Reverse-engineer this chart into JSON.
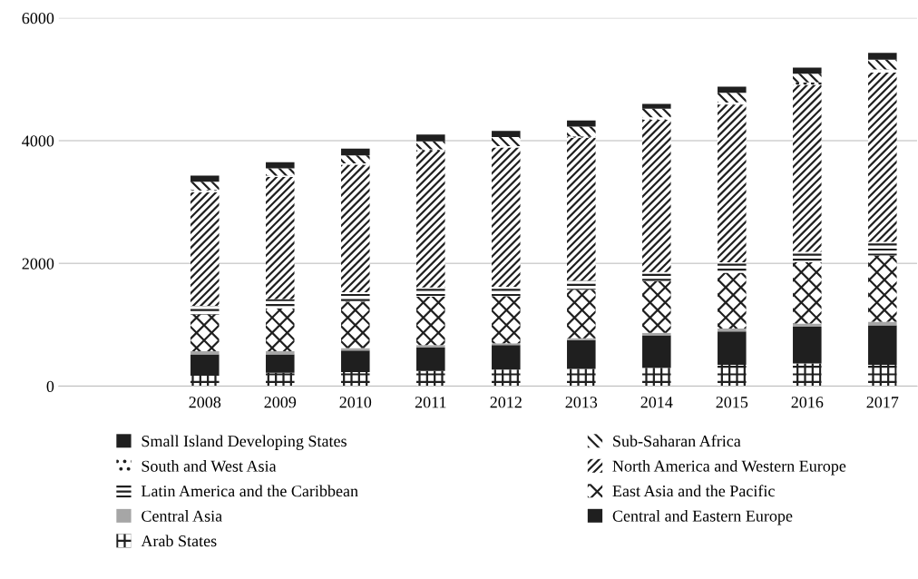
{
  "chart_data": {
    "type": "bar",
    "stacked": true,
    "categories": [
      "2008",
      "2009",
      "2010",
      "2011",
      "2012",
      "2013",
      "2014",
      "2015",
      "2016",
      "2017"
    ],
    "series": [
      {
        "name": "Arab States",
        "color": "#1f1f1f",
        "values": [
          170,
          220,
          230,
          250,
          270,
          280,
          300,
          350,
          370,
          350
        ]
      },
      {
        "name": "Central and Eastern Europe",
        "color": "#1f1f1f",
        "values": [
          350,
          300,
          350,
          380,
          400,
          470,
          530,
          540,
          600,
          640
        ]
      },
      {
        "name": "Central Asia",
        "color": "#a6a6a6",
        "values": [
          50,
          50,
          40,
          40,
          30,
          30,
          40,
          50,
          50,
          60
        ]
      },
      {
        "name": "East Asia and the Pacific",
        "color": "#1f1f1f",
        "values": [
          600,
          700,
          760,
          790,
          770,
          790,
          840,
          910,
          1000,
          1080
        ]
      },
      {
        "name": "Latin America and the Caribbean",
        "color": "#1f1f1f",
        "values": [
          140,
          150,
          150,
          150,
          150,
          150,
          150,
          170,
          170,
          220
        ]
      },
      {
        "name": "North America and Western Europe",
        "color": "#1f1f1f",
        "values": [
          1850,
          1990,
          2080,
          2230,
          2270,
          2330,
          2480,
          2570,
          2720,
          2760
        ]
      },
      {
        "name": "South and West Asia",
        "color": "#1f1f1f",
        "values": [
          40,
          20,
          20,
          20,
          20,
          20,
          40,
          30,
          40,
          50
        ]
      },
      {
        "name": "Sub-Saharan Africa",
        "color": "#1f1f1f",
        "values": [
          130,
          120,
          130,
          130,
          150,
          160,
          140,
          160,
          140,
          160
        ]
      },
      {
        "name": "Small Island Developing States",
        "color": "#1f1f1f",
        "values": [
          100,
          100,
          110,
          110,
          100,
          100,
          80,
          100,
          100,
          110
        ]
      }
    ],
    "ylim": [
      0,
      6000
    ],
    "yticks": [
      0,
      2000,
      4000,
      6000
    ],
    "grid": "y",
    "legend": "bottom"
  }
}
